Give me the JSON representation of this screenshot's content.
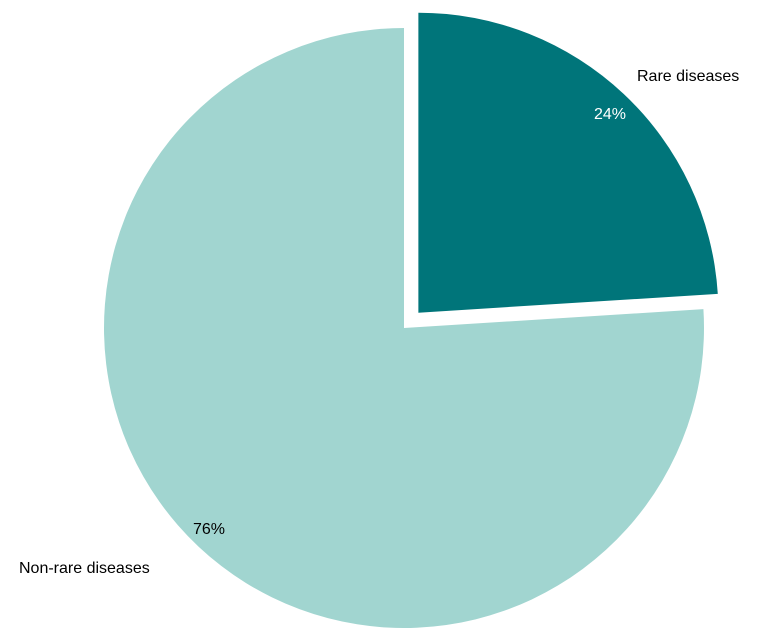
{
  "chart_data": {
    "type": "pie",
    "title": "",
    "slices": [
      {
        "label": "Rare diseases",
        "value": 24,
        "value_label": "24%",
        "color": "#00757A",
        "value_label_color": "#ffffff",
        "exploded": true
      },
      {
        "label": "Non-rare diseases",
        "value": 76,
        "value_label": "76%",
        "color": "#A1D5D0",
        "value_label_color": "#000000",
        "exploded": false
      }
    ],
    "legend": "none"
  }
}
